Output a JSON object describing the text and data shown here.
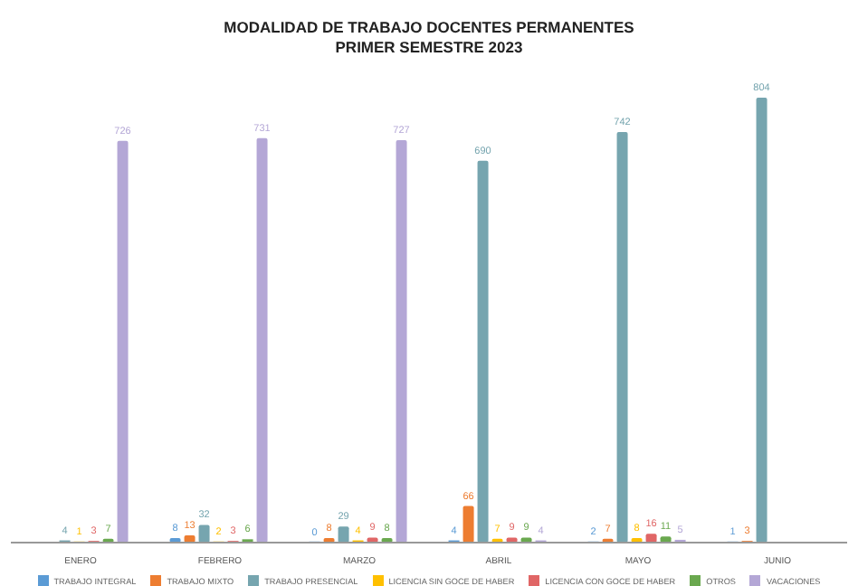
{
  "chart_data": {
    "type": "bar",
    "title": "MODALIDAD DE TRABAJO DOCENTES PERMANENTES",
    "subtitle": "PRIMER SEMESTRE 2023",
    "categories": [
      "ENERO",
      "FEBRERO",
      "MARZO",
      "ABRIL",
      "MAYO",
      "JUNIO"
    ],
    "series": [
      {
        "name": "TRABAJO INTEGRAL",
        "color": "#5b9bd5",
        "values": [
          null,
          8,
          0,
          4,
          2,
          1
        ]
      },
      {
        "name": "TRABAJO MIXTO",
        "color": "#ed7d31",
        "values": [
          null,
          13,
          8,
          66,
          7,
          3
        ]
      },
      {
        "name": "TRABAJO PRESENCIAL",
        "color": "#76a5af",
        "values": [
          4,
          32,
          29,
          690,
          742,
          804
        ]
      },
      {
        "name": "LICENCIA SIN GOCE DE HABER",
        "color": "#ffc000",
        "values": [
          1,
          2,
          4,
          7,
          8,
          null
        ]
      },
      {
        "name": "LICENCIA CON GOCE DE HABER",
        "color": "#e06666",
        "values": [
          3,
          3,
          9,
          9,
          16,
          null
        ]
      },
      {
        "name": "OTROS",
        "color": "#6aa84f",
        "values": [
          7,
          6,
          8,
          9,
          11,
          null
        ]
      },
      {
        "name": "VACACIONES",
        "color": "#b4a7d6",
        "values": [
          726,
          731,
          727,
          4,
          5,
          null
        ]
      }
    ],
    "tick_labels": "x",
    "legend": "bottom",
    "data_labels": true
  }
}
